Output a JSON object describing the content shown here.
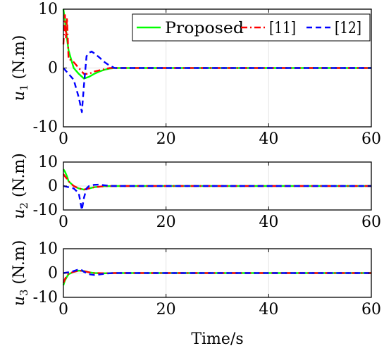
{
  "chart_data": [
    {
      "type": "line",
      "ylabel": "u_1 (N.m)",
      "ylabel_main": "u",
      "ylabel_sub": "1",
      "ylabel_unit": " (N.m)",
      "xlabel": "",
      "xlim": [
        0,
        60
      ],
      "ylim": [
        -10,
        10
      ],
      "xticks": [
        "0",
        "20",
        "40",
        "60"
      ],
      "yticks": [
        "10",
        "0",
        "-10"
      ],
      "grid": true,
      "legend": {
        "placement": "top-right",
        "entries": [
          "Proposed",
          "[11]",
          "[12]"
        ]
      },
      "series": [
        {
          "name": "Proposed",
          "color": "#00ff00",
          "style": "solid",
          "x": [
            0,
            0.3,
            0.7,
            1,
            1.5,
            2,
            3,
            4,
            5,
            6,
            7,
            8,
            9,
            10,
            12,
            15,
            20,
            60
          ],
          "y": [
            10,
            8,
            5,
            3,
            1.5,
            0,
            -1,
            -1.8,
            -1.5,
            -1,
            -0.6,
            -0.3,
            -0.1,
            0,
            0,
            0,
            0,
            0
          ]
        },
        {
          "name": "[11]",
          "color": "#ff0000",
          "style": "dashdot",
          "x": [
            0,
            0.3,
            0.5,
            0.7,
            1,
            1.2,
            2,
            3,
            4,
            5,
            6,
            7,
            8,
            9,
            10,
            12,
            15,
            60
          ],
          "y": [
            4,
            9,
            5,
            8.5,
            1.5,
            1.5,
            1,
            0,
            -1,
            -1,
            -0.6,
            -0.4,
            -0.2,
            0,
            0,
            0,
            0,
            0
          ]
        },
        {
          "name": "[12]",
          "color": "#0000ff",
          "style": "dashed",
          "x": [
            0,
            0.5,
            1,
            2,
            3,
            3.6,
            4,
            4.5,
            5,
            5.5,
            6,
            7,
            8,
            9,
            10,
            12,
            15,
            60
          ],
          "y": [
            0,
            -0.5,
            -1,
            -2,
            -5,
            -7.5,
            -3,
            2,
            2.6,
            2.8,
            2.5,
            1.8,
            1,
            0.4,
            0,
            0,
            0,
            0
          ]
        }
      ]
    },
    {
      "type": "line",
      "ylabel": "u_2 (N.m)",
      "ylabel_main": "u",
      "ylabel_sub": "2",
      "ylabel_unit": " (N.m)",
      "xlabel": "",
      "xlim": [
        0,
        60
      ],
      "ylim": [
        -10,
        10
      ],
      "xticks": [
        "0",
        "20",
        "40",
        "60"
      ],
      "yticks": [
        "10",
        "0",
        "-10"
      ],
      "grid": true,
      "series": [
        {
          "name": "Proposed",
          "color": "#00ff00",
          "style": "solid",
          "x": [
            0,
            0.3,
            0.7,
            1,
            2,
            3,
            4,
            5,
            6,
            8,
            10,
            60
          ],
          "y": [
            7,
            6,
            4,
            2,
            0,
            -1,
            -1.5,
            -1,
            -0.5,
            -0.1,
            0,
            0
          ]
        },
        {
          "name": "[11]",
          "color": "#ff0000",
          "style": "dashdot",
          "x": [
            0,
            0.3,
            0.7,
            1,
            2,
            3,
            4,
            5,
            6,
            8,
            10,
            60
          ],
          "y": [
            5,
            4,
            3,
            2,
            0,
            -1,
            -1.5,
            -1,
            -0.5,
            -0.1,
            0,
            0
          ]
        },
        {
          "name": "[12]",
          "color": "#0000ff",
          "style": "dashed",
          "x": [
            0,
            1,
            2,
            3,
            3.6,
            4,
            4.5,
            5,
            6,
            7,
            8,
            9,
            10,
            60
          ],
          "y": [
            0,
            -0.5,
            -1,
            -3,
            -10,
            -5,
            -1,
            0,
            0.5,
            0.6,
            0.3,
            0.1,
            0,
            0
          ]
        }
      ]
    },
    {
      "type": "line",
      "ylabel": "u_3 (N.m)",
      "ylabel_main": "u",
      "ylabel_sub": "3",
      "ylabel_unit": " (N.m)",
      "xlabel": "Time/s",
      "xlim": [
        0,
        60
      ],
      "ylim": [
        -10,
        10
      ],
      "xticks": [
        "0",
        "20",
        "40",
        "60"
      ],
      "yticks": [
        "10",
        "0",
        "-10"
      ],
      "grid": true,
      "series": [
        {
          "name": "Proposed",
          "color": "#00ff00",
          "style": "solid",
          "x": [
            0,
            0.3,
            0.7,
            1,
            2,
            3,
            4,
            5,
            6,
            8,
            10,
            60
          ],
          "y": [
            -5,
            -3,
            -1.5,
            -0.5,
            0.5,
            1,
            0.8,
            0.3,
            0,
            -0.1,
            0,
            0
          ]
        },
        {
          "name": "[11]",
          "color": "#ff0000",
          "style": "dashdot",
          "x": [
            0,
            0.3,
            0.7,
            1,
            2,
            3,
            4,
            5,
            6,
            8,
            10,
            60
          ],
          "y": [
            -4,
            -2.5,
            -1,
            -0.3,
            0.5,
            1,
            0.8,
            0.3,
            0,
            -0.1,
            0,
            0
          ]
        },
        {
          "name": "[12]",
          "color": "#0000ff",
          "style": "dashed",
          "x": [
            0,
            1,
            2,
            3,
            3.6,
            4,
            5,
            6,
            7,
            8,
            9,
            10,
            60
          ],
          "y": [
            0,
            0.3,
            0.8,
            1.5,
            1.2,
            0.5,
            -0.5,
            -0.8,
            -0.6,
            -0.3,
            -0.1,
            0,
            0
          ]
        }
      ]
    }
  ]
}
